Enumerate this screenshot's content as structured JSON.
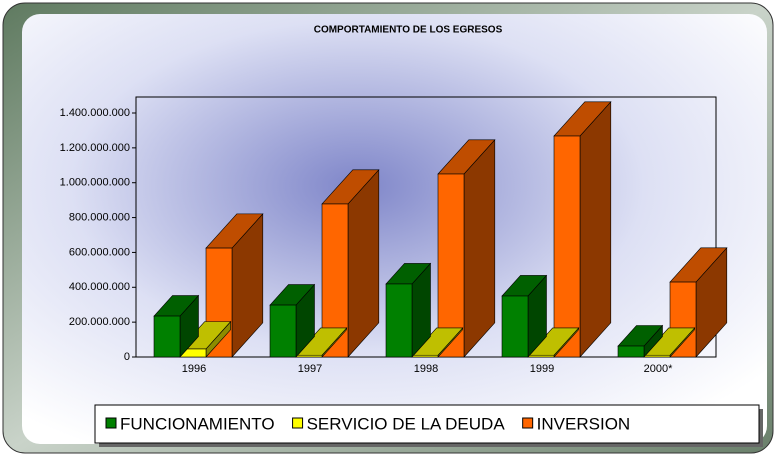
{
  "chart_data": {
    "type": "bar3d",
    "title": "COMPORTAMIENTO DE LOS EGRESOS",
    "categories": [
      "1996",
      "1997",
      "1998",
      "1999",
      "2000*"
    ],
    "series": [
      {
        "name": "FUNCIONAMIENTO",
        "color": "#008000",
        "values": [
          235000000,
          298000000,
          419000000,
          350000000,
          63000000
        ]
      },
      {
        "name": "SERVICIO DE LA DEUDA",
        "color": "#ffff00",
        "values": [
          46000000,
          10000000,
          10000000,
          10000000,
          10000000
        ]
      },
      {
        "name": "INVERSION",
        "color": "#ff6600",
        "values": [
          625000000,
          878000000,
          1050000000,
          1268000000,
          430000000
        ]
      }
    ],
    "ylim": [
      0,
      1400000000
    ],
    "yticks": [
      0,
      {
        "value": 200000000,
        "label": "200.000.000"
      },
      {
        "value": 400000000,
        "label": "400.000.000"
      },
      {
        "value": 600000000,
        "label": "600.000.000"
      },
      {
        "value": 800000000,
        "label": "800.000.000"
      },
      {
        "value": 1000000000,
        "label": "1.000.000.000"
      },
      {
        "value": 1200000000,
        "label": "1.200.000.000"
      },
      {
        "value": 1400000000,
        "label": "1.400.000.000"
      }
    ],
    "legend": "bottom"
  }
}
